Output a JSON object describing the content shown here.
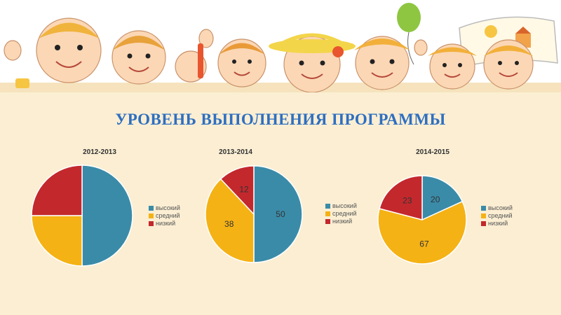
{
  "page": {
    "title": "УРОВЕНЬ ВЫПОЛНЕНИЯ ПРОГРАММЫ"
  },
  "colors": {
    "high": "#3a8ba8",
    "mid": "#f5b215",
    "low": "#c3282d",
    "text": "#2e6fc0"
  },
  "legend_labels": [
    "высокий",
    "средний",
    "низкий"
  ],
  "chart_data": [
    {
      "type": "pie",
      "title": "2012-2013",
      "categories": [
        "высокий",
        "средний",
        "низкий"
      ],
      "values": [
        50,
        25,
        25
      ],
      "data_labels": [
        "",
        "",
        ""
      ],
      "legend_position": "right"
    },
    {
      "type": "pie",
      "title": "2013-2014",
      "categories": [
        "высокий",
        "средний",
        "низкий"
      ],
      "values": [
        50,
        38,
        12
      ],
      "data_labels": [
        "50",
        "38",
        "12"
      ],
      "legend_position": "right"
    },
    {
      "type": "pie",
      "title": "2014-2015",
      "categories": [
        "высокий",
        "средний",
        "низкий"
      ],
      "values": [
        20,
        67,
        23
      ],
      "data_labels": [
        "20",
        "67",
        "23"
      ],
      "legend_position": "right"
    }
  ]
}
